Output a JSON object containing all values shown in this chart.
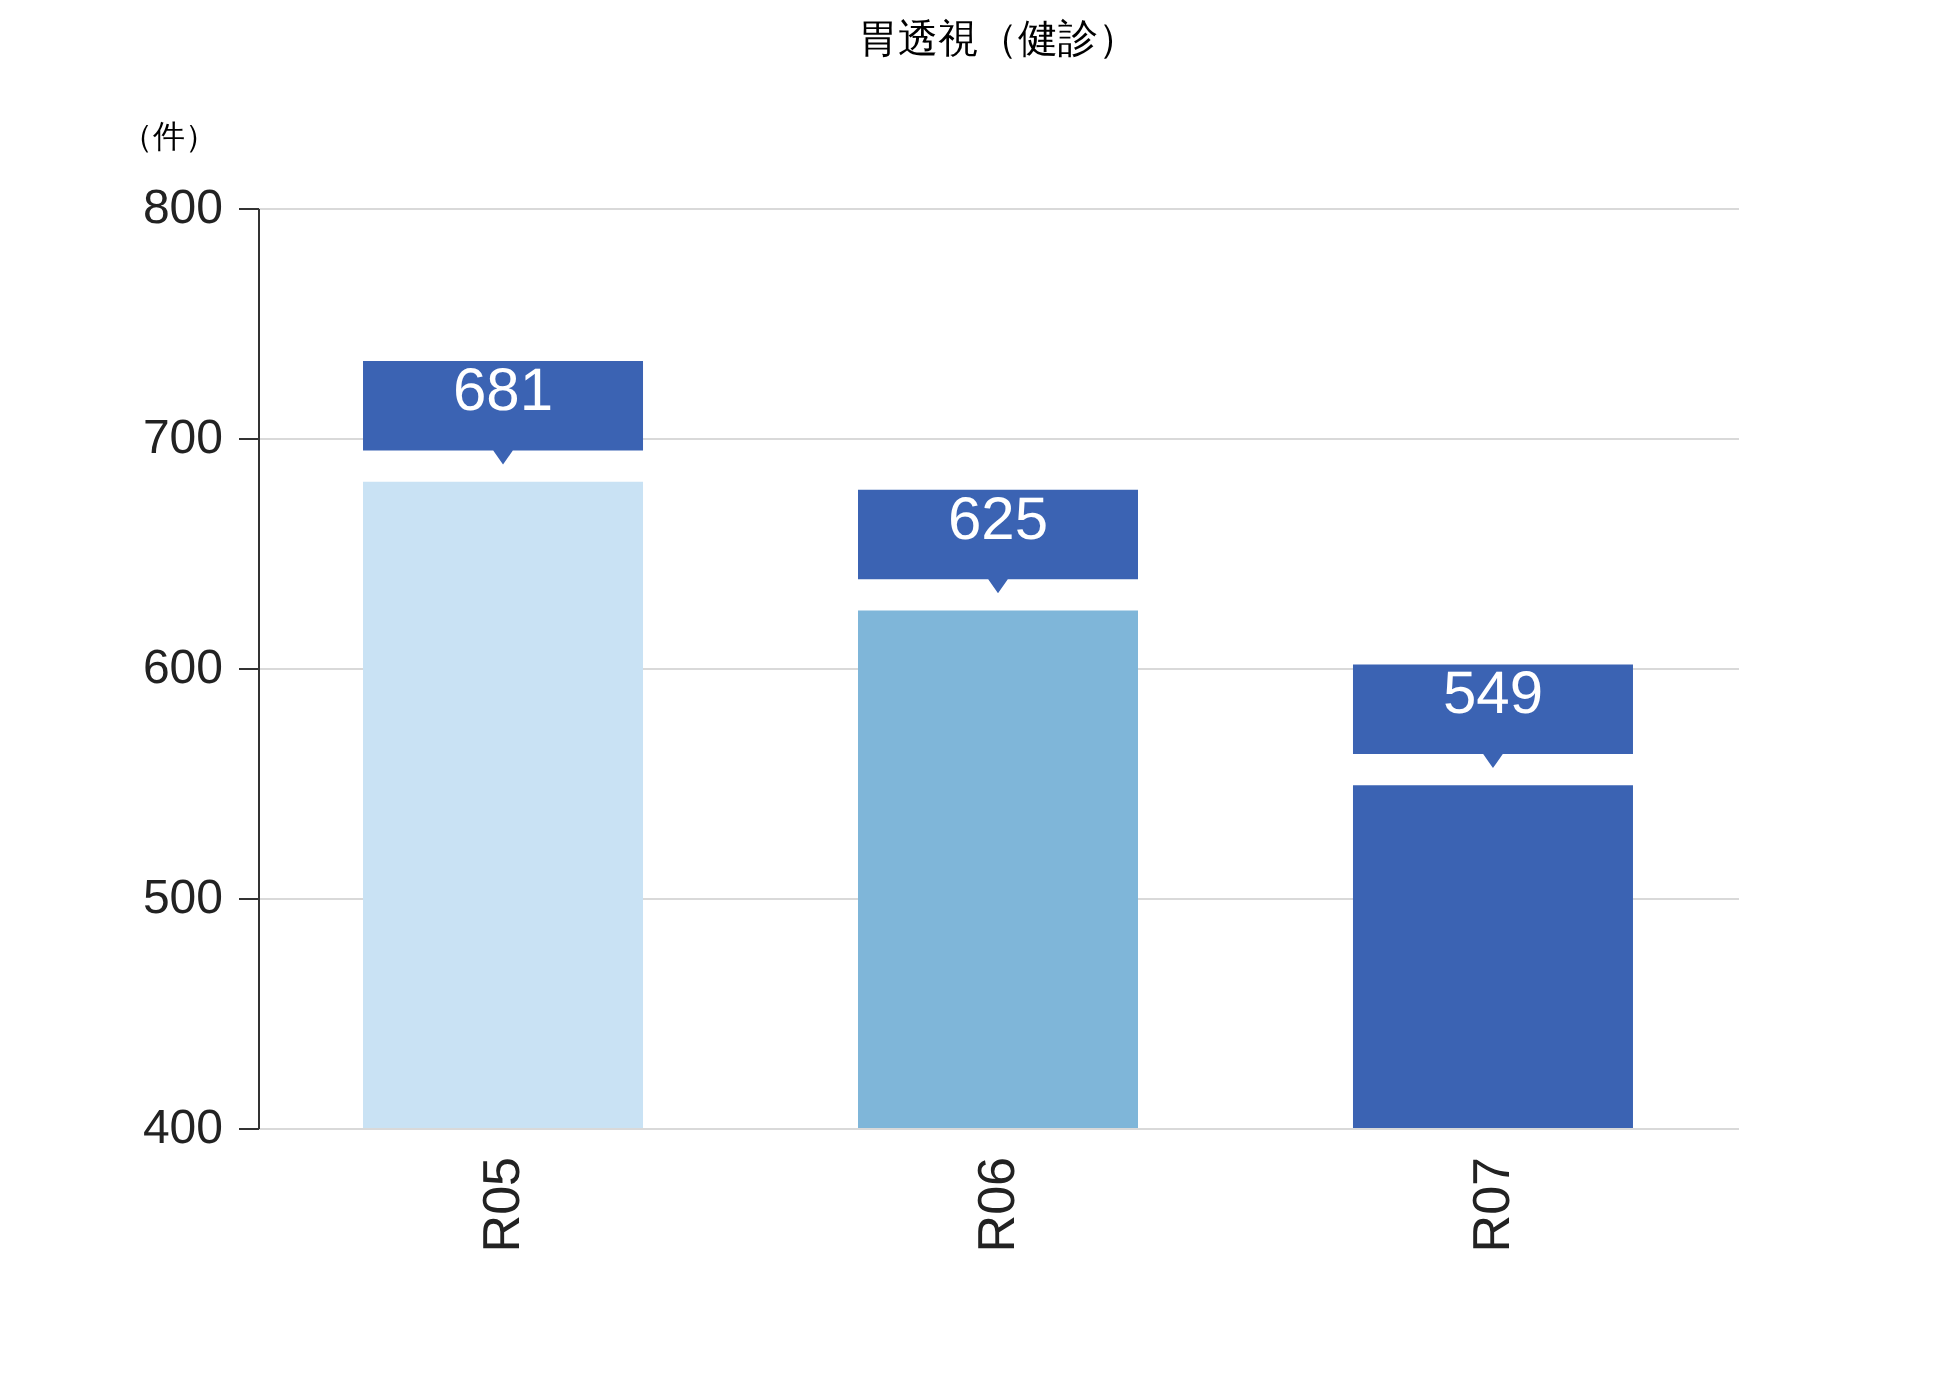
{
  "chart_data": {
    "type": "bar",
    "title": "胃透視（健診）",
    "ylabel": "（件）",
    "categories": [
      "R05",
      "R06",
      "R07"
    ],
    "values": [
      681,
      625,
      549
    ],
    "colors": [
      "#c9e2f4",
      "#7fb6d9",
      "#3b63b3"
    ],
    "ylim": [
      400,
      800
    ],
    "yticks": [
      400,
      500,
      600,
      700,
      800
    ],
    "grid": "y",
    "data_labels": true
  }
}
